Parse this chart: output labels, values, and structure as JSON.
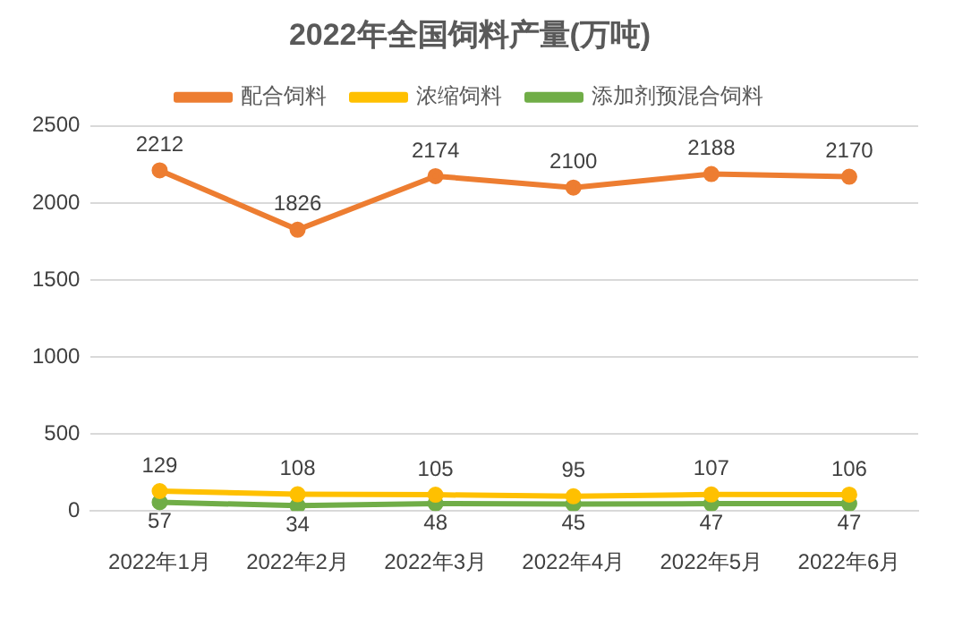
{
  "chart_data": {
    "type": "line",
    "title": "2022年全国饲料产量(万吨)",
    "categories": [
      "2022年1月",
      "2022年2月",
      "2022年3月",
      "2022年4月",
      "2022年5月",
      "2022年6月"
    ],
    "series": [
      {
        "name": "配合饲料",
        "color": "#ed7d31",
        "values": [
          2212,
          1826,
          2174,
          2100,
          2188,
          2170
        ]
      },
      {
        "name": "浓缩饲料",
        "color": "#ffc000",
        "values": [
          129,
          108,
          105,
          95,
          107,
          106
        ]
      },
      {
        "name": "添加剂预混合饲料",
        "color": "#70ad47",
        "values": [
          57,
          34,
          48,
          45,
          47,
          47
        ]
      }
    ],
    "ylim": [
      0,
      2500
    ],
    "yticks": [
      0,
      500,
      1000,
      1500,
      2000,
      2500
    ],
    "grid": "y",
    "legend": "top",
    "marker": "circle",
    "line_style": "solid",
    "data_labels": true
  }
}
